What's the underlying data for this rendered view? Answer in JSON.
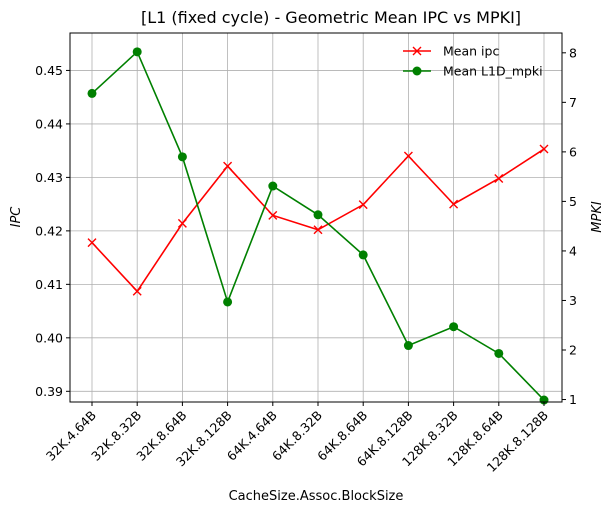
{
  "chart_data": {
    "type": "line",
    "title": "[L1 (fixed cycle) - Geometric Mean IPC vs MPKI]",
    "xlabel": "CacheSize.Assoc.BlockSize",
    "ylabel": "IPC",
    "y2label": "MPKI",
    "categories": [
      "32K.4.64B",
      "32K.8.32B",
      "32K.8.64B",
      "32K.8.128B",
      "64K.4.64B",
      "64K.8.32B",
      "64K.8.64B",
      "64K.8.128B",
      "128K.8.32B",
      "128K.8.64B",
      "128K.8.128B"
    ],
    "ylim": [
      0.388,
      0.457
    ],
    "y2lim": [
      0.95,
      8.4
    ],
    "yticks": [
      "0.39",
      "0.40",
      "0.41",
      "0.42",
      "0.43",
      "0.44",
      "0.45"
    ],
    "y2ticks": [
      "1",
      "2",
      "3",
      "4",
      "5",
      "6",
      "7",
      "8"
    ],
    "grid": true,
    "legend_position": "top-right",
    "series": [
      {
        "name": "Mean ipc",
        "axis": "left",
        "color": "#ff0000",
        "marker": "x",
        "values": [
          0.4178,
          0.4087,
          0.4214,
          0.4321,
          0.4229,
          0.4202,
          0.4249,
          0.434,
          0.425,
          0.4298,
          0.4353
        ]
      },
      {
        "name": "Mean L1D_mpki",
        "axis": "right",
        "color": "#008000",
        "marker": "o",
        "values": [
          7.18,
          8.02,
          5.9,
          2.97,
          5.31,
          4.73,
          3.92,
          2.09,
          2.47,
          1.93,
          0.99
        ]
      }
    ]
  }
}
